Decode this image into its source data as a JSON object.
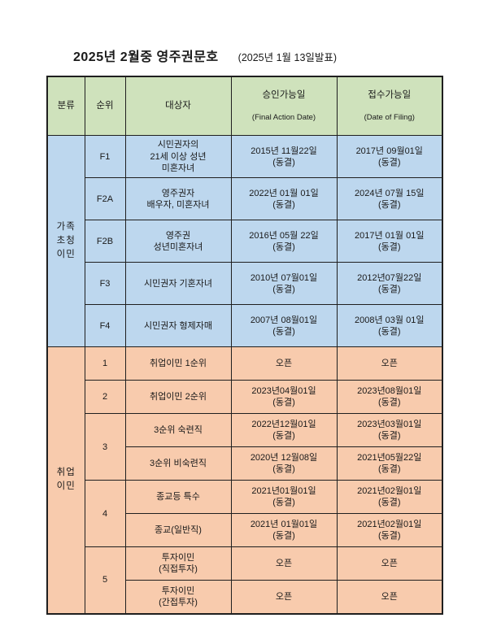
{
  "title": "2025년 2월중 영주권문호",
  "subtitle": "(2025년 1월 13일발표)",
  "colors": {
    "header_bg": "#cfe2bc",
    "family_bg": "#bdd7ee",
    "employment_bg": "#f8cbad",
    "border": "#1f1f1f",
    "text": "#1a1a1a"
  },
  "header": {
    "columns": [
      {
        "label": "분류",
        "sub": ""
      },
      {
        "label": "순위",
        "sub": ""
      },
      {
        "label": "대상자",
        "sub": ""
      },
      {
        "label": "승인가능일",
        "sub": "(Final Action Date)"
      },
      {
        "label": "접수가능일",
        "sub": "(Date of Filing)"
      }
    ]
  },
  "sections": [
    {
      "name": "가족\n초청\n이민",
      "rows": [
        {
          "rank": "F1",
          "target": "시민권자의\n21세 이상 성년\n미혼자녀",
          "final_action": "2015년 11월22일\n(동결)",
          "filing": "2017년 09월01일\n(동결)"
        },
        {
          "rank": "F2A",
          "target": "영주권자\n배우자, 미혼자녀",
          "final_action": "2022년 01월 01일\n(동결)",
          "filing": "2024년 07월 15일\n(동결)"
        },
        {
          "rank": "F2B",
          "target": "영주권\n성년미혼자녀",
          "final_action": "2016년 05월 22일\n(동결)",
          "filing": "2017년 01월 01일\n(동결)"
        },
        {
          "rank": "F3",
          "target": "시민권자 기혼자녀",
          "final_action": "2010년 07월01일\n(동결)",
          "filing": "2012년07월22일\n(동결)"
        },
        {
          "rank": "F4",
          "target": "시민권자 형제자매",
          "final_action": "2007년 08월01일\n(동결)",
          "filing": "2008년 03월 01일\n(동결)"
        }
      ]
    },
    {
      "name": "취업\n이민",
      "rows": [
        {
          "rank": "1",
          "target": "취업이민 1순위",
          "final_action": "오픈",
          "filing": "오픈"
        },
        {
          "rank": "2",
          "target": "취업이민 2순위",
          "final_action": "2023년04월01일\n(동결)",
          "filing": "2023년08월01일\n(동결)"
        },
        {
          "rank": "3",
          "target": "3순위 숙련직",
          "final_action": "2022년12월01일\n(동결)",
          "filing": "2023년03월01일\n(동결)"
        },
        {
          "rank": "",
          "target": "3순위 비숙련직",
          "final_action": "2020년 12월08일\n(동결)",
          "filing": "2021년05월22일\n(동결)"
        },
        {
          "rank": "4",
          "target": "종교등 특수",
          "final_action": "2021년01월01일\n(동결)",
          "filing": "2021년02월01일\n(동결)"
        },
        {
          "rank": "",
          "target": "종교(일반직)",
          "final_action": "2021년 01월01일\n(동결)",
          "filing": "2021년02월01일\n(동결)"
        },
        {
          "rank": "5",
          "target": "투자이민\n(직접투자)",
          "final_action": "오픈",
          "filing": "오픈"
        },
        {
          "rank": "",
          "target": "투자이민\n(간접투자)",
          "final_action": "오픈",
          "filing": "오픈"
        }
      ]
    }
  ]
}
